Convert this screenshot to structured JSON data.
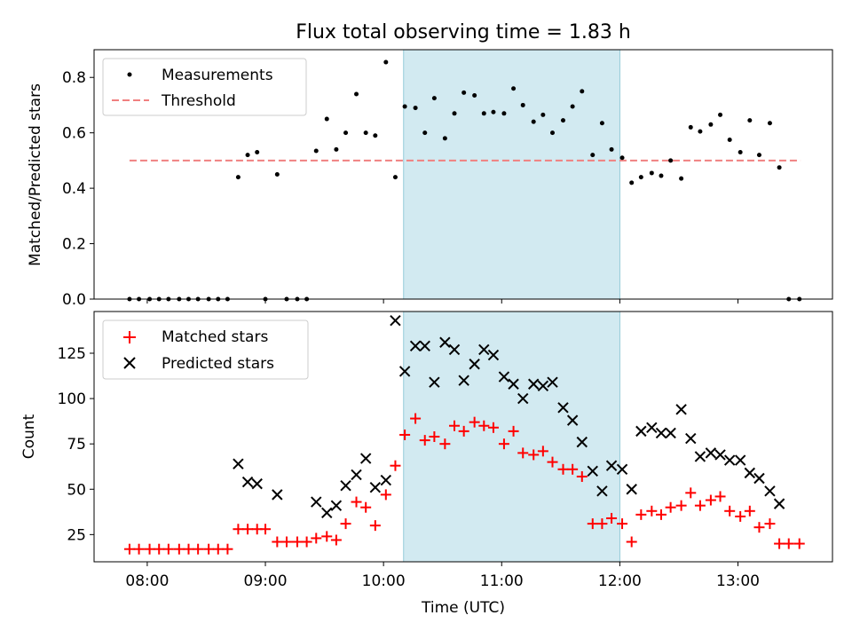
{
  "chart_data": [
    {
      "type": "scatter",
      "title": "Flux total observing time = 1.83 h",
      "xlabel": "",
      "ylabel": "Matched/Predicted stars",
      "x_range_hours": [
        7.55,
        13.8
      ],
      "ylim": [
        0,
        0.9
      ],
      "yticks": [
        0.0,
        0.2,
        0.4,
        0.6,
        0.8
      ],
      "ytick_labels": [
        "0.0",
        "0.2",
        "0.4",
        "0.6",
        "0.8"
      ],
      "legend": [
        "Measurements",
        "Threshold"
      ],
      "legend_position": "top-left",
      "shaded_region": [
        10.17,
        12.0
      ],
      "threshold": {
        "x": [
          7.85,
          13.53
        ],
        "y": 0.5
      },
      "series": [
        {
          "name": "Measurements",
          "x": [
            7.85,
            7.93,
            8.02,
            8.1,
            8.18,
            8.27,
            8.35,
            8.43,
            8.52,
            8.6,
            8.68,
            8.77,
            8.85,
            8.93,
            9.0,
            9.1,
            9.18,
            9.27,
            9.35,
            9.43,
            9.52,
            9.6,
            9.68,
            9.77,
            9.85,
            9.93,
            10.02,
            10.1,
            10.18,
            10.27,
            10.35,
            10.43,
            10.52,
            10.6,
            10.68,
            10.77,
            10.85,
            10.93,
            11.02,
            11.1,
            11.18,
            11.27,
            11.35,
            11.43,
            11.52,
            11.6,
            11.68,
            11.77,
            11.85,
            11.93,
            12.02,
            12.1,
            12.18,
            12.27,
            12.35,
            12.43,
            12.52,
            12.6,
            12.68,
            12.77,
            12.85,
            12.93,
            13.02,
            13.1,
            13.18,
            13.27,
            13.35,
            13.43,
            13.52
          ],
          "y": [
            0.0,
            0.0,
            0.0,
            0.0,
            0.0,
            0.0,
            0.0,
            0.0,
            0.0,
            0.0,
            0.0,
            0.44,
            0.52,
            0.53,
            0.0,
            0.45,
            0.0,
            0.0,
            0.0,
            0.535,
            0.65,
            0.54,
            0.6,
            0.74,
            0.6,
            0.59,
            0.855,
            0.44,
            0.695,
            0.69,
            0.6,
            0.725,
            0.58,
            0.67,
            0.745,
            0.735,
            0.67,
            0.675,
            0.67,
            0.76,
            0.7,
            0.64,
            0.665,
            0.6,
            0.645,
            0.695,
            0.75,
            0.52,
            0.635,
            0.54,
            0.51,
            0.42,
            0.44,
            0.455,
            0.445,
            0.5,
            0.435,
            0.62,
            0.605,
            0.63,
            0.665,
            0.575,
            0.53,
            0.645,
            0.52,
            0.635,
            0.475,
            0.0,
            0.0
          ]
        }
      ]
    },
    {
      "type": "scatter",
      "title": "",
      "xlabel": "Time (UTC)",
      "ylabel": "Count",
      "x_range_hours": [
        7.55,
        13.8
      ],
      "ylim": [
        10,
        148
      ],
      "yticks": [
        25,
        50,
        75,
        100,
        125
      ],
      "ytick_labels": [
        "25",
        "50",
        "75",
        "100",
        "125"
      ],
      "xticks": [
        8,
        9,
        10,
        11,
        12,
        13
      ],
      "xtick_labels": [
        "08:00",
        "09:00",
        "10:00",
        "11:00",
        "12:00",
        "13:00"
      ],
      "legend": [
        "Matched stars",
        "Predicted stars"
      ],
      "legend_position": "top-left",
      "shaded_region": [
        10.17,
        12.0
      ],
      "series": [
        {
          "name": "Matched stars",
          "marker": "+",
          "x": [
            7.85,
            7.93,
            8.02,
            8.1,
            8.18,
            8.27,
            8.35,
            8.43,
            8.52,
            8.6,
            8.68,
            8.77,
            8.85,
            8.93,
            9.0,
            9.1,
            9.18,
            9.27,
            9.35,
            9.43,
            9.52,
            9.6,
            9.68,
            9.77,
            9.85,
            9.93,
            10.02,
            10.1,
            10.18,
            10.27,
            10.35,
            10.43,
            10.52,
            10.6,
            10.68,
            10.77,
            10.85,
            10.93,
            11.02,
            11.1,
            11.18,
            11.27,
            11.35,
            11.43,
            11.52,
            11.6,
            11.68,
            11.77,
            11.85,
            11.93,
            12.02,
            12.1,
            12.18,
            12.27,
            12.35,
            12.43,
            12.52,
            12.6,
            12.68,
            12.77,
            12.85,
            12.93,
            13.02,
            13.1,
            13.18,
            13.27,
            13.35,
            13.43,
            13.52
          ],
          "y": [
            17,
            17,
            17,
            17,
            17,
            17,
            17,
            17,
            17,
            17,
            17,
            28,
            28,
            28,
            28,
            21,
            21,
            21,
            21,
            23,
            24,
            22,
            31,
            43,
            40,
            30,
            47,
            63,
            80,
            89,
            77,
            79,
            75,
            85,
            82,
            87,
            85,
            84,
            75,
            82,
            70,
            69,
            71,
            65,
            61,
            61,
            57,
            31,
            31,
            34,
            31,
            21,
            36,
            38,
            36,
            40,
            41,
            48,
            41,
            44,
            46,
            38,
            35,
            38,
            29,
            31,
            20,
            20,
            20
          ]
        },
        {
          "name": "Predicted stars",
          "marker": "x",
          "x": [
            8.77,
            8.85,
            8.93,
            9.1,
            9.43,
            9.52,
            9.6,
            9.68,
            9.77,
            9.85,
            9.93,
            10.02,
            10.1,
            10.18,
            10.27,
            10.35,
            10.43,
            10.52,
            10.6,
            10.68,
            10.77,
            10.85,
            10.93,
            11.02,
            11.1,
            11.18,
            11.27,
            11.35,
            11.43,
            11.52,
            11.6,
            11.68,
            11.77,
            11.85,
            11.93,
            12.02,
            12.1,
            12.18,
            12.27,
            12.35,
            12.43,
            12.52,
            12.6,
            12.68,
            12.77,
            12.85,
            12.93,
            13.02,
            13.1,
            13.18,
            13.27,
            13.35
          ],
          "y": [
            64,
            54,
            53,
            47,
            43,
            37,
            41,
            52,
            58,
            67,
            51,
            55,
            143,
            115,
            129,
            129,
            109,
            131,
            127,
            110,
            119,
            127,
            124,
            112,
            108,
            100,
            108,
            107,
            109,
            95,
            88,
            76,
            60,
            49,
            63,
            61,
            50,
            82,
            84,
            81,
            81,
            94,
            78,
            68,
            70,
            69,
            66,
            66,
            59,
            56,
            49,
            42
          ]
        }
      ]
    }
  ]
}
